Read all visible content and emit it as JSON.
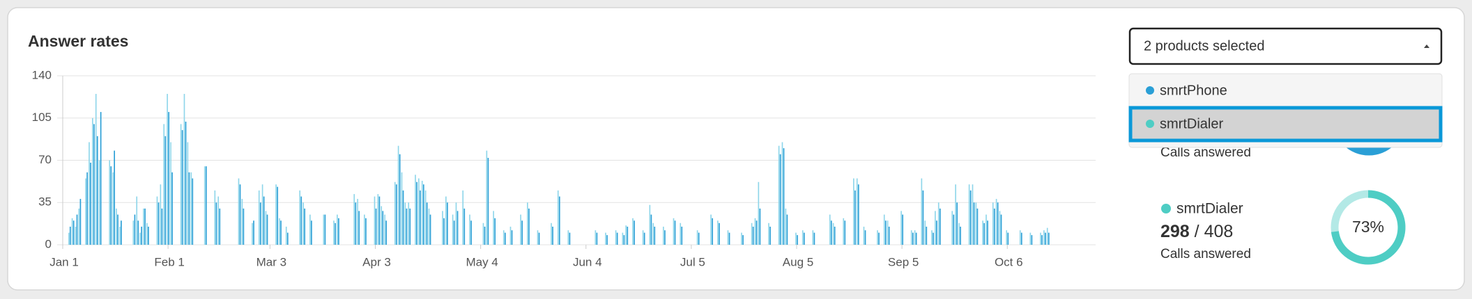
{
  "chart_data": {
    "type": "bar",
    "title": "Answer rates",
    "x": [
      2,
      3,
      4,
      5,
      7,
      8,
      9,
      10,
      11,
      14,
      15,
      16,
      17,
      21,
      22,
      23,
      24,
      25,
      28,
      29,
      30,
      31,
      32,
      35,
      36,
      37,
      38,
      42,
      45,
      46,
      52,
      53,
      56,
      58,
      59,
      60,
      63,
      64,
      66,
      70,
      71,
      73,
      77,
      80,
      81,
      86,
      87,
      89,
      92,
      93,
      94,
      95,
      98,
      99,
      100,
      101,
      102,
      104,
      105,
      106,
      107,
      108,
      112,
      113,
      115,
      116,
      118,
      120,
      124,
      125,
      127,
      130,
      132,
      135,
      137,
      140,
      144,
      146,
      149,
      157,
      160,
      163,
      165,
      166,
      168,
      171,
      173,
      174,
      177,
      180,
      182,
      187,
      191,
      193,
      196,
      200,
      203,
      204,
      205,
      208,
      211,
      212,
      213,
      216,
      218,
      221,
      226,
      227,
      230,
      233,
      234,
      236,
      240,
      242,
      243,
      247,
      250,
      251,
      253,
      254,
      256,
      257,
      258,
      262,
      263,
      264,
      267,
      268,
      269,
      271,
      272,
      274,
      275,
      276,
      278,
      282,
      285,
      288,
      289,
      290
    ],
    "series": [
      {
        "name": "smrtPhone",
        "color": "#2a9fd6",
        "values": [
          15,
          20,
          25,
          38,
          60,
          68,
          100,
          90,
          110,
          65,
          78,
          25,
          20,
          25,
          20,
          15,
          30,
          15,
          35,
          30,
          90,
          110,
          60,
          95,
          102,
          60,
          55,
          65,
          35,
          30,
          50,
          30,
          20,
          35,
          40,
          25,
          48,
          20,
          10,
          40,
          30,
          20,
          25,
          18,
          22,
          35,
          28,
          22,
          30,
          40,
          28,
          20,
          50,
          75,
          45,
          30,
          30,
          52,
          45,
          50,
          35,
          25,
          22,
          35,
          20,
          28,
          30,
          20,
          15,
          72,
          22,
          10,
          12,
          20,
          30,
          10,
          15,
          40,
          10,
          10,
          8,
          10,
          8,
          15,
          20,
          10,
          25,
          15,
          12,
          20,
          15,
          10,
          22,
          18,
          10,
          8,
          15,
          20,
          30,
          15,
          75,
          80,
          25,
          8,
          10,
          10,
          20,
          15,
          20,
          45,
          50,
          12,
          10,
          20,
          15,
          25,
          10,
          10,
          45,
          15,
          10,
          20,
          30,
          25,
          35,
          15,
          45,
          35,
          30,
          18,
          20,
          30,
          35,
          25,
          10,
          10,
          8,
          8,
          10,
          10
        ]
      },
      {
        "name": "smrtDialer",
        "color": "#8fd6ea",
        "values": [
          10,
          22,
          15,
          30,
          55,
          85,
          105,
          125,
          70,
          70,
          60,
          30,
          15,
          20,
          40,
          10,
          30,
          18,
          40,
          50,
          100,
          125,
          85,
          100,
          125,
          85,
          60,
          65,
          45,
          40,
          55,
          38,
          18,
          45,
          50,
          28,
          50,
          22,
          15,
          45,
          35,
          25,
          25,
          20,
          25,
          42,
          38,
          25,
          40,
          42,
          32,
          25,
          52,
          82,
          60,
          35,
          35,
          58,
          55,
          53,
          45,
          30,
          28,
          40,
          25,
          35,
          45,
          25,
          18,
          78,
          28,
          12,
          15,
          25,
          35,
          12,
          18,
          45,
          12,
          12,
          10,
          12,
          10,
          16,
          22,
          12,
          33,
          18,
          15,
          22,
          18,
          12,
          25,
          20,
          12,
          10,
          18,
          22,
          52,
          18,
          82,
          85,
          30,
          10,
          12,
          12,
          25,
          18,
          22,
          55,
          55,
          15,
          12,
          25,
          20,
          28,
          12,
          12,
          55,
          20,
          12,
          28,
          35,
          28,
          50,
          18,
          50,
          50,
          35,
          20,
          25,
          35,
          38,
          28,
          12,
          12,
          10,
          10,
          12,
          14
        ]
      }
    ],
    "xlim": [
      0,
      304
    ],
    "xticks": [
      {
        "value": 0,
        "label": "Jan 1"
      },
      {
        "value": 31,
        "label": "Feb 1"
      },
      {
        "value": 61,
        "label": "Mar 3"
      },
      {
        "value": 92,
        "label": "Apr 3"
      },
      {
        "value": 123,
        "label": "May 4"
      },
      {
        "value": 154,
        "label": "Jun 4"
      },
      {
        "value": 185,
        "label": "Jul 5"
      },
      {
        "value": 216,
        "label": "Aug 5"
      },
      {
        "value": 247,
        "label": "Sep 5"
      },
      {
        "value": 278,
        "label": "Oct 6"
      }
    ],
    "ylim": [
      0,
      140
    ],
    "yticks": [
      0,
      35,
      70,
      105,
      140
    ],
    "grid": true
  },
  "dropdown": {
    "selected": "2 products selected"
  },
  "summary": {
    "phone": {
      "caption": "Calls answered",
      "color": "#2a9fd6"
    },
    "dialer": {
      "answered": 298,
      "total": "/ 408",
      "caption": "Calls answered",
      "percent": {
        "value": 73,
        "label": "73%"
      },
      "color": "#4ecdc4",
      "track": "#b3e9e6"
    }
  }
}
